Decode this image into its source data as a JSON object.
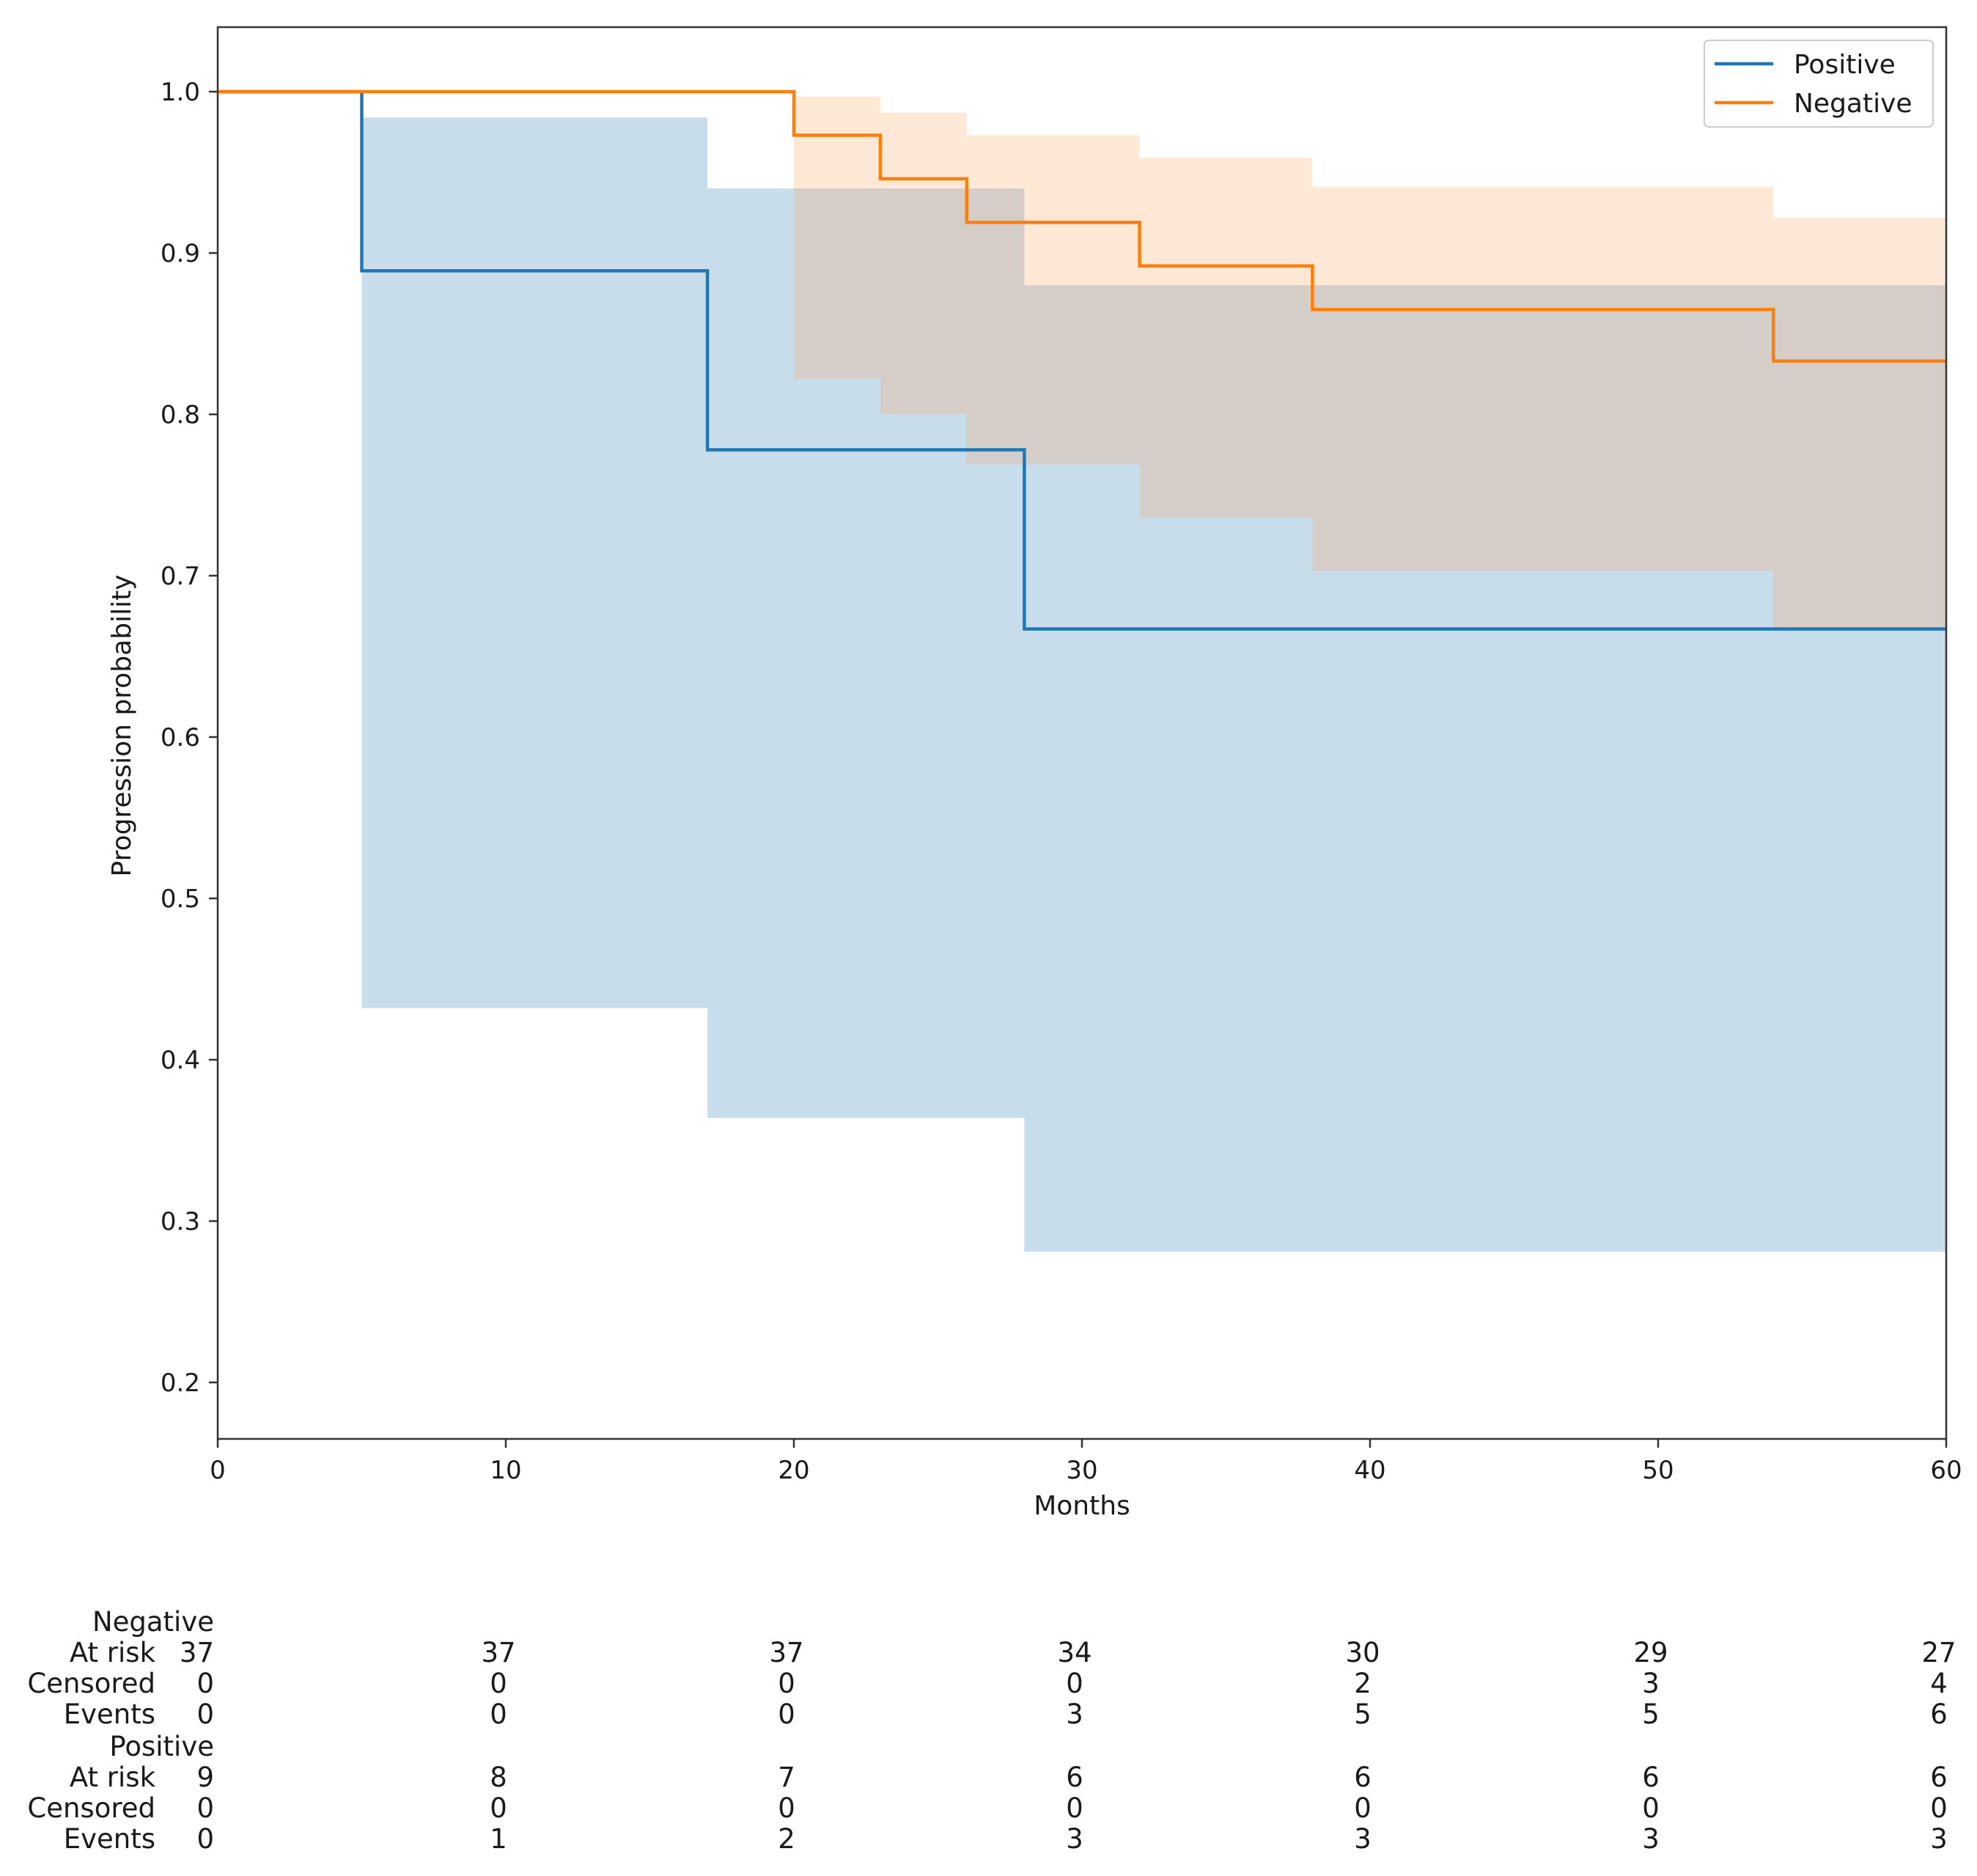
{
  "chart_data": {
    "type": "line",
    "subtype": "kaplan-meier step with confidence bands",
    "xlabel": "Months",
    "ylabel": "Progression probability",
    "xlim": [
      0,
      60
    ],
    "ylim": [
      0.165,
      1.04
    ],
    "xticks": [
      0,
      10,
      20,
      30,
      40,
      50,
      60
    ],
    "yticks": [
      0.2,
      0.3,
      0.4,
      0.5,
      0.6,
      0.7,
      0.8,
      0.9,
      1.0
    ],
    "grid": false,
    "legend_position": "top-right",
    "series": [
      {
        "name": "Positive",
        "color": "#1f77b4",
        "band_color": "#1f77b4",
        "steps": [
          [
            0,
            1.0
          ],
          [
            5,
            0.889
          ],
          [
            17,
            0.778
          ],
          [
            28,
            0.667
          ],
          [
            60,
            0.667
          ]
        ],
        "ci_steps": [
          [
            0,
            1.0,
            1.0
          ],
          [
            5,
            0.432,
            0.984
          ],
          [
            17,
            0.364,
            0.94
          ],
          [
            28,
            0.281,
            0.88
          ],
          [
            60,
            0.281,
            0.88
          ]
        ]
      },
      {
        "name": "Negative",
        "color": "#ff7f0e",
        "band_color": "#ffa35a",
        "steps": [
          [
            0,
            1.0
          ],
          [
            20,
            0.973
          ],
          [
            23,
            0.946
          ],
          [
            26,
            0.919
          ],
          [
            32,
            0.892
          ],
          [
            38,
            0.865
          ],
          [
            54,
            0.833
          ],
          [
            60,
            0.833
          ]
        ],
        "ci_steps": [
          [
            0,
            1.0,
            1.0
          ],
          [
            20,
            0.822,
            0.997
          ],
          [
            23,
            0.8,
            0.987
          ],
          [
            26,
            0.769,
            0.973
          ],
          [
            32,
            0.736,
            0.959
          ],
          [
            38,
            0.703,
            0.941
          ],
          [
            54,
            0.666,
            0.922
          ],
          [
            60,
            0.666,
            0.922
          ]
        ]
      }
    ],
    "at_risk_table": {
      "times": [
        0,
        10,
        20,
        30,
        40,
        50,
        60
      ],
      "groups": [
        {
          "name": "Negative",
          "rows": [
            {
              "label": "At risk",
              "values": [
                "37",
                "37",
                "37",
                "34",
                "30",
                "29",
                "27"
              ]
            },
            {
              "label": "Censored",
              "values": [
                "0",
                "0",
                "0",
                "0",
                "2",
                "3",
                "4"
              ]
            },
            {
              "label": "Events",
              "values": [
                "0",
                "0",
                "0",
                "3",
                "5",
                "5",
                "6"
              ]
            }
          ]
        },
        {
          "name": "Positive",
          "rows": [
            {
              "label": "At risk",
              "values": [
                "9",
                "8",
                "7",
                "6",
                "6",
                "6",
                "6"
              ]
            },
            {
              "label": "Censored",
              "values": [
                "0",
                "0",
                "0",
                "0",
                "0",
                "0",
                "0"
              ]
            },
            {
              "label": "Events",
              "values": [
                "0",
                "1",
                "2",
                "3",
                "3",
                "3",
                "3"
              ]
            }
          ]
        }
      ]
    }
  }
}
